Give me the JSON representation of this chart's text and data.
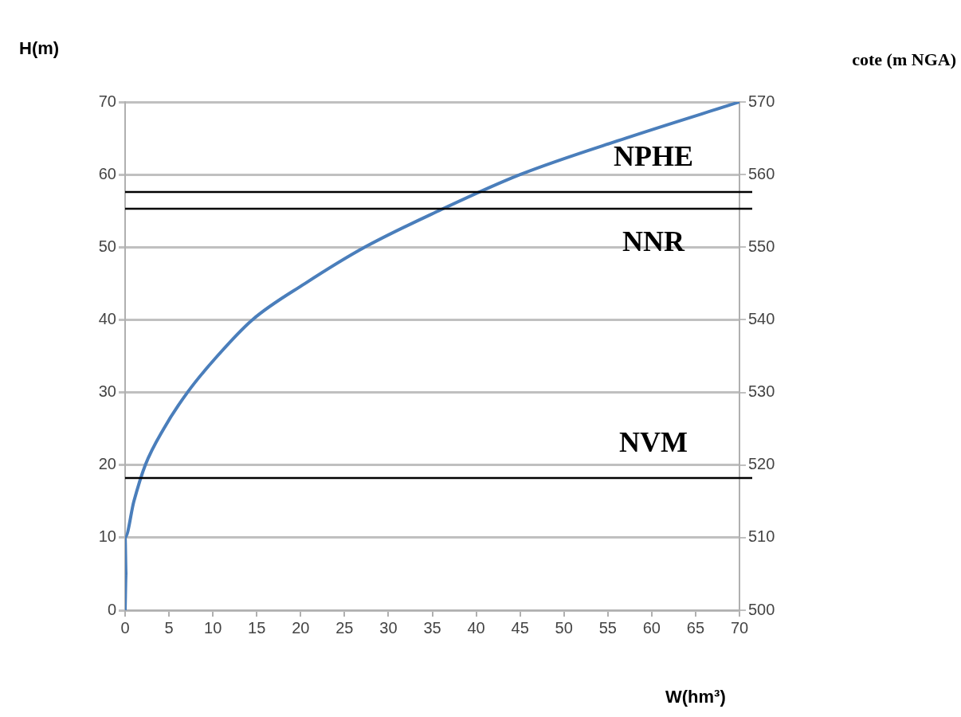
{
  "chart_data": {
    "type": "line",
    "xlabel": "W(hm³)",
    "ylabel": "H(m)",
    "y2label": "cote (m NGA)",
    "series": [
      {
        "color": "#4a7ebb",
        "x": [
          0,
          0.1,
          0,
          1,
          2.3,
          4.4,
          7.1,
          10.5,
          14.5,
          20.5,
          27.3,
          35.7,
          45,
          57,
          70
        ],
        "values": [
          0,
          5,
          10,
          15,
          20,
          25,
          30,
          35,
          40,
          45,
          50,
          55,
          60,
          65,
          70
        ]
      }
    ],
    "xlim": [
      0,
      70
    ],
    "xticks": [
      0,
      5,
      10,
      15,
      20,
      25,
      30,
      35,
      40,
      45,
      50,
      55,
      60,
      65,
      70
    ],
    "ylim": [
      0,
      70
    ],
    "yticks": [
      0,
      10,
      20,
      30,
      40,
      50,
      60,
      70
    ],
    "y2lim": [
      500,
      570
    ],
    "y2ticks": [
      500,
      510,
      520,
      530,
      540,
      550,
      560,
      570
    ],
    "ref_lines": [
      {
        "axis": "y",
        "value": 57.6,
        "color": "#000000",
        "label": "NPHE"
      },
      {
        "axis": "y",
        "value": 55.3,
        "color": "#000000",
        "label": "NNR"
      },
      {
        "axis": "y",
        "value": 18.2,
        "color": "#000000",
        "label": "NVM"
      }
    ],
    "grid": "y",
    "legend": false,
    "marker": "none",
    "line_style": "solid"
  }
}
